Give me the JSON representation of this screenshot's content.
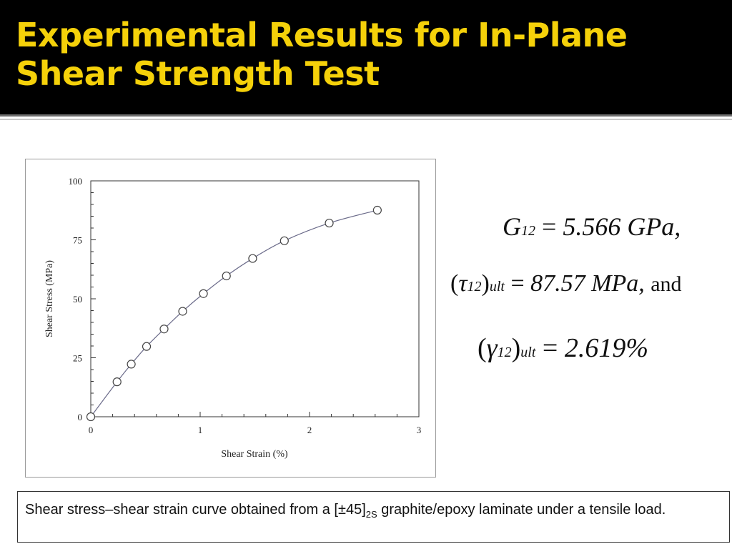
{
  "slide": {
    "title_line1": "Experimental Results for In-Plane",
    "title_line2": "Shear Strength Test"
  },
  "equations": {
    "g12_symbol": "G",
    "g12_sub": "12",
    "g12_value": "5.566 GPa,",
    "tau_symbol": "τ",
    "tau_sub": "12",
    "ult_sub": "ult",
    "tau_value": "87.57 MPa,",
    "tau_and": "and",
    "gamma_symbol": "γ",
    "gamma_sub": "12",
    "gamma_value": "2.619%"
  },
  "caption": {
    "text_before": "Shear stress–shear strain curve obtained from a [±45]",
    "subscript": "2S",
    "text_after": " graphite/epoxy laminate under a tensile load."
  },
  "chart_data": {
    "type": "line",
    "xlabel": "Shear Strain (%)",
    "ylabel": "Shear Stress (MPa)",
    "xlim": [
      0,
      3
    ],
    "ylim": [
      0,
      100
    ],
    "xticks": [
      0,
      1,
      2,
      3
    ],
    "yticks": [
      0,
      25,
      50,
      75,
      100
    ],
    "grid": false,
    "marker": "open-circle",
    "line_color": "#6b6b8a",
    "series": [
      {
        "x": [
          0,
          0.24,
          0.37,
          0.51,
          0.67,
          0.84,
          1.03,
          1.24,
          1.48,
          1.77,
          2.18,
          2.62
        ],
        "values": [
          0,
          14.8,
          22.3,
          29.8,
          37.2,
          44.7,
          52.2,
          59.7,
          67.1,
          74.6,
          82.1,
          87.57
        ]
      }
    ]
  }
}
